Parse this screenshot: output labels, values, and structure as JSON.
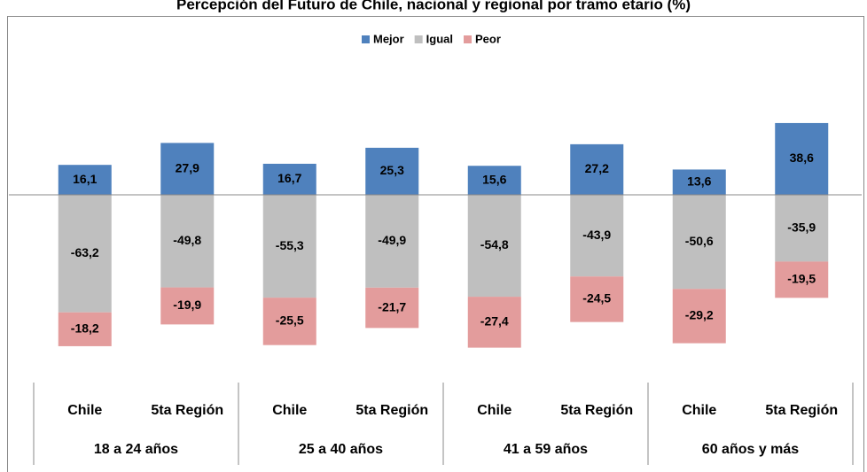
{
  "chart_data": {
    "type": "stacked_bar",
    "title": "Percepción del Futuro de Chile, nacional y regional por tramo etario (%)",
    "categories": [
      "Chile",
      "5ta Región",
      "Chile",
      "5ta Región",
      "Chile",
      "5ta Región",
      "Chile",
      "5ta Región"
    ],
    "groups": [
      "18 a 24 años",
      "25 a 40 años",
      "41 a 59 años",
      "60 años y más"
    ],
    "series": [
      {
        "name": "Mejor",
        "color": "#4f81bd",
        "values": [
          16.1,
          27.9,
          16.7,
          25.3,
          15.6,
          27.2,
          13.6,
          38.6
        ],
        "value_labels": [
          "16,1",
          "27,9",
          "16,7",
          "25,3",
          "15,6",
          "27,2",
          "13,6",
          "38,6"
        ]
      },
      {
        "name": "Igual",
        "color": "#bfbfbf",
        "values": [
          -63.2,
          -49.8,
          -55.3,
          -49.9,
          -54.8,
          -43.9,
          -50.6,
          -35.9
        ],
        "value_labels": [
          "-63,2",
          "-49,8",
          "-55,3",
          "-49,9",
          "-54,8",
          "-43,9",
          "-50,6",
          "-35,9"
        ]
      },
      {
        "name": "Peor",
        "color": "#e39c9c",
        "values": [
          -18.2,
          -19.9,
          -25.5,
          -21.7,
          -27.4,
          -24.5,
          -29.2,
          -19.5
        ],
        "value_labels": [
          "-18,2",
          "-19,9",
          "-25,5",
          "-21,7",
          "-27,4",
          "-24,5",
          "-29,2",
          "-19,5"
        ]
      }
    ],
    "ylim": [
      -100,
      50
    ],
    "legend": "top"
  }
}
